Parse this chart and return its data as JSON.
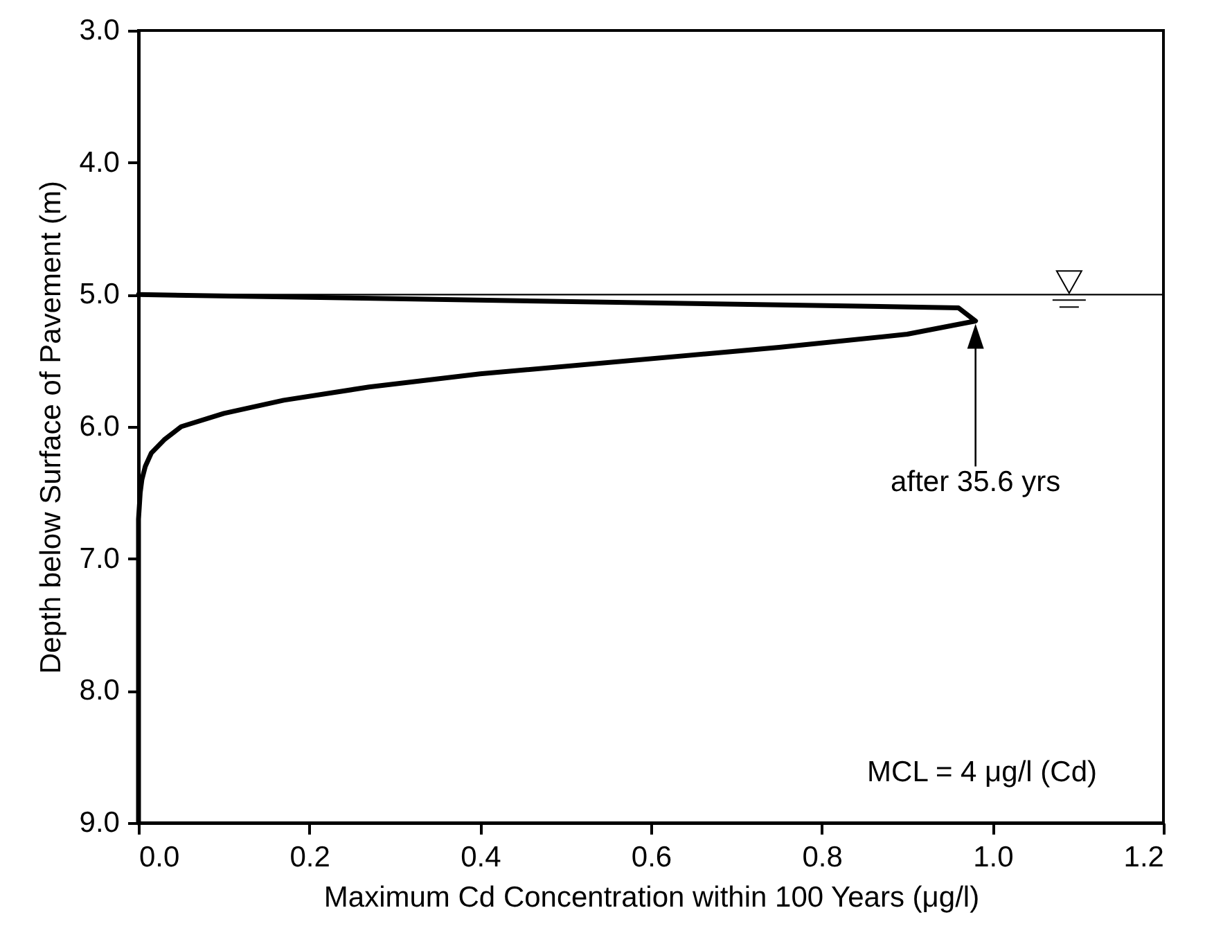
{
  "chart_data": {
    "type": "line",
    "xlabel": "Maximum Cd Concentration within 100 Years (μg/l)",
    "ylabel": "Depth below Surface of Pavement (m)",
    "series": [
      {
        "color": "#000000",
        "x": [
          0,
          0.96,
          0.98,
          0.9,
          0.75,
          0.4,
          0.27,
          0.17,
          0.1,
          0.05,
          0.03,
          0.015,
          0.008,
          0.004,
          0.002,
          0.001,
          0,
          0
        ],
        "values": [
          5.0,
          5.1,
          5.2,
          5.3,
          5.4,
          5.6,
          5.7,
          5.8,
          5.9,
          6.0,
          6.1,
          6.2,
          6.3,
          6.4,
          6.5,
          6.6,
          6.7,
          9.0
        ]
      }
    ],
    "xlim": [
      0,
      1.2
    ],
    "xticks": [
      {
        "value": 0,
        "label": "0.0"
      },
      0.2,
      0.4,
      0.6,
      0.8,
      {
        "value": 1,
        "label": "1.0"
      },
      1.2
    ],
    "ylim": [
      9.0,
      3.0
    ],
    "yticks": [
      {
        "value": 3,
        "label": "3.0"
      },
      {
        "value": 4,
        "label": "4.0"
      },
      {
        "value": 5,
        "label": "5.0"
      },
      {
        "value": 6,
        "label": "6.0"
      },
      {
        "value": 7,
        "label": "7.0"
      },
      {
        "value": 8,
        "label": "8.0"
      },
      {
        "value": 9,
        "label": "9.0"
      }
    ],
    "ref_lines": [
      {
        "axis": "y",
        "value": 5.0,
        "label": null,
        "color": "#000000"
      }
    ],
    "annotations": [
      "after 35.6 yrs",
      "MCL = 4 μg/l (Cd)"
    ],
    "grid": false,
    "marker": "none",
    "line_style": "solid"
  }
}
